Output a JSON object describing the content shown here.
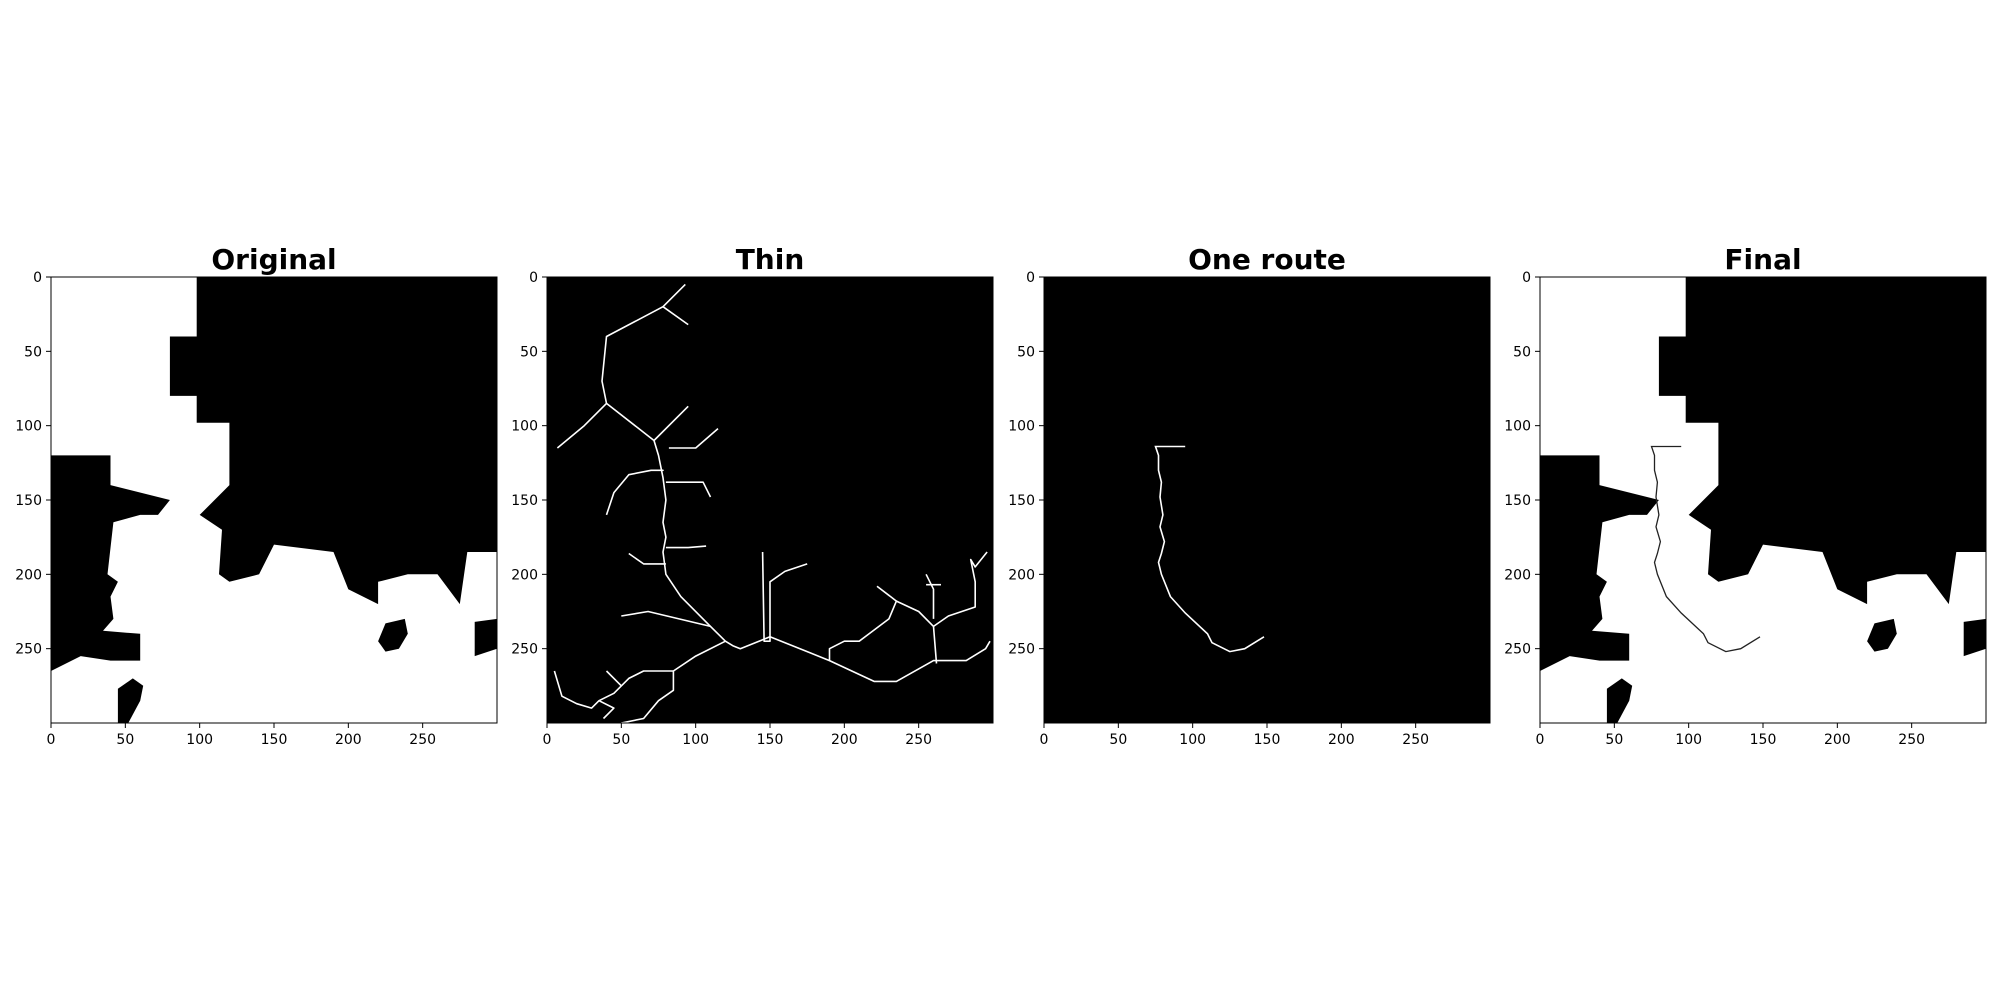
{
  "chart_data": [
    {
      "type": "heatmap",
      "title": "Original",
      "colormap": "binary (white = 1, black = 0)",
      "xlim": [
        0,
        300
      ],
      "ylim": [
        300,
        0
      ],
      "xticks": [
        0,
        50,
        100,
        150,
        200,
        250
      ],
      "yticks": [
        0,
        50,
        100,
        150,
        200,
        250
      ],
      "image_size": [
        300,
        300
      ],
      "white_regions": [
        [
          [
            0,
            0
          ],
          [
            98,
            0
          ],
          [
            98,
            40
          ],
          [
            80,
            40
          ],
          [
            80,
            80
          ],
          [
            98,
            80
          ],
          [
            98,
            98
          ],
          [
            120,
            98
          ],
          [
            120,
            140
          ],
          [
            100,
            160
          ],
          [
            115,
            170
          ],
          [
            113,
            200
          ],
          [
            120,
            205
          ],
          [
            140,
            200
          ],
          [
            150,
            180
          ],
          [
            190,
            185
          ],
          [
            200,
            210
          ],
          [
            220,
            220
          ],
          [
            220,
            205
          ],
          [
            240,
            200
          ],
          [
            260,
            200
          ],
          [
            275,
            220
          ],
          [
            280,
            185
          ],
          [
            300,
            185
          ],
          [
            300,
            300
          ],
          [
            0,
            300
          ],
          [
            0,
            265
          ],
          [
            20,
            255
          ],
          [
            40,
            258
          ],
          [
            60,
            258
          ],
          [
            60,
            240
          ],
          [
            35,
            238
          ],
          [
            42,
            230
          ],
          [
            40,
            215
          ],
          [
            45,
            205
          ],
          [
            38,
            200
          ],
          [
            42,
            165
          ],
          [
            60,
            160
          ],
          [
            72,
            160
          ],
          [
            80,
            150
          ],
          [
            40,
            140
          ],
          [
            40,
            120
          ],
          [
            0,
            120
          ]
        ]
      ],
      "black_islands": [
        [
          [
            225,
            233
          ],
          [
            238,
            230
          ],
          [
            240,
            240
          ],
          [
            234,
            250
          ],
          [
            225,
            252
          ],
          [
            220,
            245
          ]
        ],
        [
          [
            285,
            232
          ],
          [
            300,
            230
          ],
          [
            300,
            250
          ],
          [
            285,
            255
          ]
        ],
        [
          [
            45,
            277
          ],
          [
            55,
            270
          ],
          [
            62,
            275
          ],
          [
            60,
            285
          ],
          [
            52,
            300
          ],
          [
            45,
            300
          ]
        ]
      ]
    },
    {
      "type": "heatmap",
      "title": "Thin",
      "colormap": "gray (skeleton)",
      "xlim": [
        0,
        300
      ],
      "ylim": [
        300,
        0
      ],
      "xticks": [
        0,
        50,
        100,
        150,
        200,
        250
      ],
      "yticks": [
        0,
        50,
        100,
        150,
        200,
        250
      ],
      "image_size": [
        300,
        300
      ],
      "skeleton_paths": [
        [
          [
            93,
            5
          ],
          [
            78,
            20
          ],
          [
            40,
            40
          ],
          [
            37,
            70
          ],
          [
            40,
            85
          ],
          [
            72,
            110
          ],
          [
            75,
            120
          ],
          [
            78,
            135
          ],
          [
            80,
            150
          ],
          [
            78,
            165
          ],
          [
            80,
            175
          ],
          [
            78,
            185
          ],
          [
            80,
            200
          ],
          [
            90,
            215
          ],
          [
            110,
            235
          ],
          [
            120,
            245
          ],
          [
            125,
            248
          ],
          [
            130,
            250
          ],
          [
            150,
            242
          ],
          [
            175,
            252
          ],
          [
            190,
            258
          ],
          [
            220,
            272
          ],
          [
            235,
            272
          ],
          [
            260,
            258
          ],
          [
            282,
            258
          ],
          [
            295,
            250
          ],
          [
            298,
            245
          ]
        ],
        [
          [
            70,
            130
          ],
          [
            78,
            130
          ],
          [
            70,
            130
          ],
          [
            55,
            133
          ],
          [
            45,
            145
          ],
          [
            40,
            160
          ]
        ],
        [
          [
            82,
            115
          ],
          [
            100,
            115
          ],
          [
            115,
            102
          ]
        ],
        [
          [
            72,
            110
          ],
          [
            95,
            87
          ]
        ],
        [
          [
            40,
            85
          ],
          [
            25,
            100
          ],
          [
            7,
            115
          ]
        ],
        [
          [
            78,
            20
          ],
          [
            95,
            32
          ]
        ],
        [
          [
            80,
            138
          ],
          [
            105,
            138
          ],
          [
            110,
            148
          ]
        ],
        [
          [
            80,
            182
          ],
          [
            95,
            182
          ],
          [
            107,
            181
          ]
        ],
        [
          [
            80,
            193
          ],
          [
            65,
            193
          ],
          [
            55,
            186
          ]
        ],
        [
          [
            110,
            235
          ],
          [
            68,
            225
          ],
          [
            50,
            228
          ]
        ],
        [
          [
            145,
            185
          ],
          [
            146,
            245
          ],
          [
            150,
            245
          ],
          [
            150,
            205
          ],
          [
            160,
            198
          ],
          [
            175,
            193
          ]
        ],
        [
          [
            190,
            258
          ],
          [
            190,
            250
          ],
          [
            200,
            245
          ],
          [
            210,
            245
          ],
          [
            230,
            230
          ],
          [
            235,
            218
          ],
          [
            250,
            225
          ],
          [
            260,
            235
          ],
          [
            262,
            260
          ]
        ],
        [
          [
            222,
            208
          ],
          [
            235,
            218
          ]
        ],
        [
          [
            260,
            235
          ],
          [
            270,
            228
          ],
          [
            288,
            222
          ],
          [
            288,
            205
          ],
          [
            285,
            190
          ],
          [
            288,
            195
          ],
          [
            296,
            185
          ]
        ],
        [
          [
            255,
            200
          ],
          [
            260,
            210
          ],
          [
            260,
            230
          ]
        ],
        [
          [
            255,
            207
          ],
          [
            265,
            207
          ]
        ],
        [
          [
            120,
            245
          ],
          [
            100,
            255
          ],
          [
            85,
            265
          ],
          [
            65,
            265
          ],
          [
            55,
            270
          ],
          [
            45,
            280
          ],
          [
            35,
            285
          ],
          [
            30,
            290
          ],
          [
            20,
            287
          ],
          [
            10,
            282
          ],
          [
            5,
            265
          ]
        ],
        [
          [
            85,
            265
          ],
          [
            85,
            278
          ],
          [
            75,
            285
          ],
          [
            65,
            297
          ],
          [
            50,
            300
          ]
        ],
        [
          [
            38,
            297
          ],
          [
            45,
            290
          ],
          [
            35,
            285
          ]
        ],
        [
          [
            50,
            275
          ],
          [
            40,
            265
          ]
        ]
      ]
    },
    {
      "type": "heatmap",
      "title": "One route",
      "colormap": "gray (single path)",
      "xlim": [
        0,
        300
      ],
      "ylim": [
        300,
        0
      ],
      "xticks": [
        0,
        50,
        100,
        150,
        200,
        250
      ],
      "yticks": [
        0,
        50,
        100,
        150,
        200,
        250
      ],
      "image_size": [
        300,
        300
      ],
      "route": [
        [
          95,
          114
        ],
        [
          75,
          114
        ],
        [
          77,
          120
        ],
        [
          77,
          130
        ],
        [
          79,
          138
        ],
        [
          78,
          148
        ],
        [
          80,
          160
        ],
        [
          78,
          168
        ],
        [
          81,
          178
        ],
        [
          79,
          186
        ],
        [
          77,
          192
        ],
        [
          79,
          200
        ],
        [
          85,
          215
        ],
        [
          95,
          226
        ],
        [
          110,
          240
        ],
        [
          113,
          246
        ],
        [
          125,
          252
        ],
        [
          135,
          250
        ],
        [
          148,
          242
        ]
      ]
    },
    {
      "type": "heatmap",
      "title": "Final",
      "colormap": "binary with route overlay",
      "xlim": [
        0,
        300
      ],
      "ylim": [
        300,
        0
      ],
      "xticks": [
        0,
        50,
        100,
        150,
        200,
        250
      ],
      "yticks": [
        0,
        50,
        100,
        150,
        200,
        250
      ],
      "image_size": [
        300,
        300
      ]
    }
  ]
}
